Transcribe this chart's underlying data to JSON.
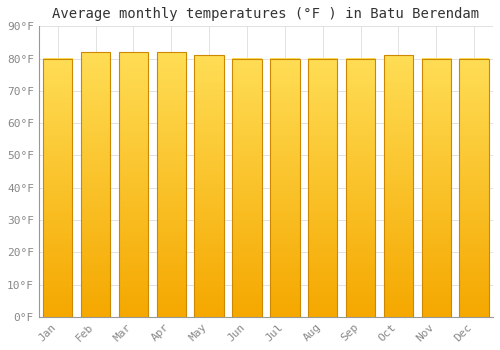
{
  "title": "Average monthly temperatures (°F ) in Batu Berendam",
  "months": [
    "Jan",
    "Feb",
    "Mar",
    "Apr",
    "May",
    "Jun",
    "Jul",
    "Aug",
    "Sep",
    "Oct",
    "Nov",
    "Dec"
  ],
  "values": [
    80,
    82,
    82,
    82,
    81,
    80,
    80,
    80,
    80,
    81,
    80,
    80
  ],
  "bar_color_top": "#FFDD55",
  "bar_color_bottom": "#F5A800",
  "bar_edge_color": "#CC8800",
  "background_color": "#FFFFFF",
  "plot_bg_color": "#FFFFFF",
  "grid_color": "#DDDDDD",
  "ylim": [
    0,
    90
  ],
  "yticks": [
    0,
    10,
    20,
    30,
    40,
    50,
    60,
    70,
    80,
    90
  ],
  "title_fontsize": 10,
  "tick_fontsize": 8,
  "tick_color": "#888888",
  "font_family": "monospace"
}
